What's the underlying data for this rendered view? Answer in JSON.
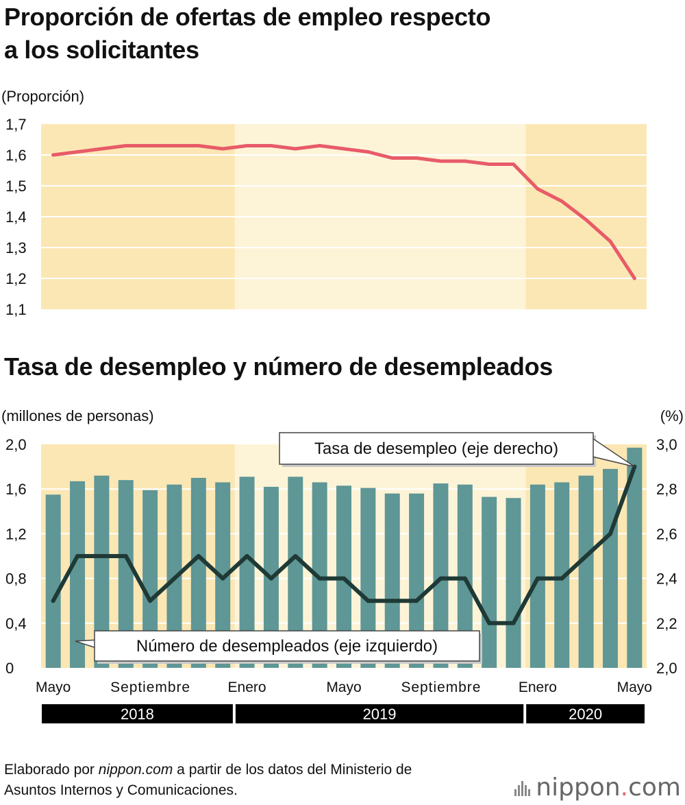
{
  "titles": {
    "chart1_line1": "Proporción de ofertas de empleo respecto",
    "chart1_line2": "a los solicitantes",
    "chart2": "Tasa de desempleo y número de desempleados"
  },
  "source": {
    "prefix": "Elaborado por ",
    "site": "nippon.com",
    "suffix_line1": " a partir de los datos del Ministerio de",
    "line2": "Asuntos Internos y Comunicaciones."
  },
  "logo": {
    "main": "nippon",
    "dot": ".",
    "suffix": "com"
  },
  "colors": {
    "band_dark": "#fbe7b4",
    "band_light": "#fdf4d8",
    "ratio_line": "#e85b68",
    "bars": "#5f9696",
    "rate_line": "#1f3a36",
    "year_bar": "#000000"
  },
  "chart_data": [
    {
      "type": "line",
      "title": "Proporción de ofertas de empleo respecto a los solicitantes",
      "ylabel": "(Proporción)",
      "ylim": [
        1.1,
        1.7
      ],
      "yticks": [
        "1,7",
        "1,6",
        "1,5",
        "1,4",
        "1,3",
        "1,2",
        "1,1"
      ],
      "ytick_values": [
        1.7,
        1.6,
        1.5,
        1.4,
        1.3,
        1.2,
        1.1
      ],
      "x": [
        "2018-05",
        "2018-06",
        "2018-07",
        "2018-08",
        "2018-09",
        "2018-10",
        "2018-11",
        "2018-12",
        "2019-01",
        "2019-02",
        "2019-03",
        "2019-04",
        "2019-05",
        "2019-06",
        "2019-07",
        "2019-08",
        "2019-09",
        "2019-10",
        "2019-11",
        "2019-12",
        "2020-01",
        "2020-02",
        "2020-03",
        "2020-04",
        "2020-05"
      ],
      "values": [
        1.6,
        1.61,
        1.62,
        1.63,
        1.63,
        1.63,
        1.63,
        1.62,
        1.63,
        1.63,
        1.62,
        1.63,
        1.62,
        1.61,
        1.59,
        1.59,
        1.58,
        1.58,
        1.57,
        1.57,
        1.49,
        1.45,
        1.39,
        1.32,
        1.2
      ],
      "grid": true
    },
    {
      "type": "bar",
      "title": "Tasa de desempleo y número de desempleados",
      "ylabel_left": "(millones de personas)",
      "ylabel_right": "(%)",
      "ylim_left": [
        0,
        2.0
      ],
      "ylim_right": [
        2.0,
        3.0
      ],
      "yticks_left": [
        "2,0",
        "1,6",
        "1,2",
        "0,8",
        "0,4",
        "0"
      ],
      "ytick_left_values": [
        2.0,
        1.6,
        1.2,
        0.8,
        0.4,
        0
      ],
      "yticks_right": [
        "3,0",
        "2,8",
        "2,6",
        "2,4",
        "2,2",
        "2,0"
      ],
      "ytick_right_values": [
        3.0,
        2.8,
        2.6,
        2.4,
        2.2,
        2.0
      ],
      "x": [
        "2018-05",
        "2018-06",
        "2018-07",
        "2018-08",
        "2018-09",
        "2018-10",
        "2018-11",
        "2018-12",
        "2019-01",
        "2019-02",
        "2019-03",
        "2019-04",
        "2019-05",
        "2019-06",
        "2019-07",
        "2019-08",
        "2019-09",
        "2019-10",
        "2019-11",
        "2019-12",
        "2020-01",
        "2020-02",
        "2020-03",
        "2020-04",
        "2020-05"
      ],
      "xtick_labels": [
        {
          "index": 0,
          "label": "Mayo"
        },
        {
          "index": 4,
          "label": "Septiembre"
        },
        {
          "index": 8,
          "label": "Enero"
        },
        {
          "index": 12,
          "label": "Mayo"
        },
        {
          "index": 16,
          "label": "Septiembre"
        },
        {
          "index": 20,
          "label": "Enero"
        },
        {
          "index": 24,
          "label": "Mayo"
        }
      ],
      "years": [
        {
          "label": "2018",
          "start": 0,
          "end": 7
        },
        {
          "label": "2019",
          "start": 8,
          "end": 19
        },
        {
          "label": "2020",
          "start": 20,
          "end": 24
        }
      ],
      "series": [
        {
          "name": "Número de desempleados (eje izquierdo)",
          "type": "bar",
          "axis": "left",
          "values": [
            1.55,
            1.67,
            1.72,
            1.68,
            1.59,
            1.64,
            1.7,
            1.66,
            1.71,
            1.62,
            1.71,
            1.66,
            1.63,
            1.61,
            1.56,
            1.56,
            1.65,
            1.64,
            1.53,
            1.52,
            1.64,
            1.66,
            1.72,
            1.78,
            1.97
          ]
        },
        {
          "name": "Tasa de desempleo (eje derecho)",
          "type": "line",
          "axis": "right",
          "values": [
            2.3,
            2.5,
            2.5,
            2.5,
            2.3,
            2.4,
            2.5,
            2.4,
            2.5,
            2.4,
            2.5,
            2.4,
            2.4,
            2.3,
            2.3,
            2.3,
            2.4,
            2.4,
            2.2,
            2.2,
            2.4,
            2.4,
            2.5,
            2.6,
            2.9
          ]
        }
      ],
      "grid": true
    }
  ]
}
